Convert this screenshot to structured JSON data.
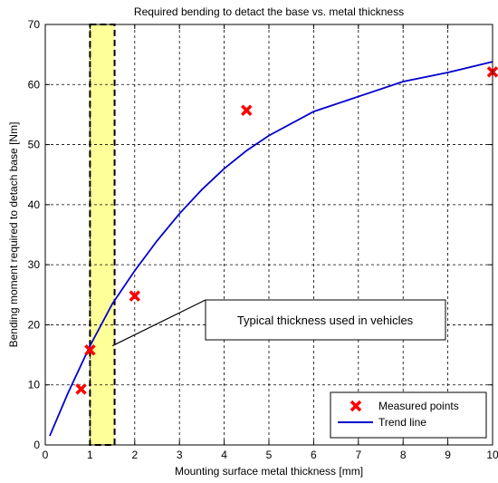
{
  "chart_data": {
    "type": "scatter",
    "title": "Required bending to detact the base vs. metal thickness",
    "xlabel": "Mounting surface metal thickness [mm]",
    "ylabel": "Bending moment required to detach base [Nm]",
    "xlim": [
      0,
      10
    ],
    "ylim": [
      0,
      70
    ],
    "xticks": [
      0,
      1,
      2,
      3,
      4,
      5,
      6,
      7,
      8,
      9,
      10
    ],
    "yticks": [
      0,
      10,
      20,
      30,
      40,
      50,
      60,
      70
    ],
    "grid": true,
    "legend_position": "bottom-right",
    "series": [
      {
        "name": "Measured points",
        "kind": "scatter",
        "marker": "x",
        "color": "#ff0000",
        "x": [
          0.8,
          1.0,
          2.0,
          4.5,
          10.0
        ],
        "y": [
          9.3,
          15.8,
          24.8,
          55.7,
          62.1
        ]
      },
      {
        "name": "Trend line",
        "kind": "line",
        "color": "#0000cc",
        "x": [
          0.1,
          0.5,
          1.0,
          1.5,
          2.0,
          2.5,
          3.0,
          3.5,
          4.0,
          4.5,
          5.0,
          6.0,
          7.0,
          8.0,
          9.0,
          10.0
        ],
        "y": [
          1.5,
          8.5,
          16.5,
          23.5,
          29.0,
          34.0,
          38.5,
          42.5,
          46.0,
          49.0,
          51.5,
          55.5,
          58.0,
          60.5,
          62.0,
          63.8
        ]
      }
    ],
    "highlight_band": {
      "x": [
        1.0,
        1.55
      ],
      "color": "#ffff99"
    },
    "annotation": {
      "text": "Typical thickness used in vehicles",
      "pointer_to": [
        1.5,
        16.5
      ]
    }
  }
}
